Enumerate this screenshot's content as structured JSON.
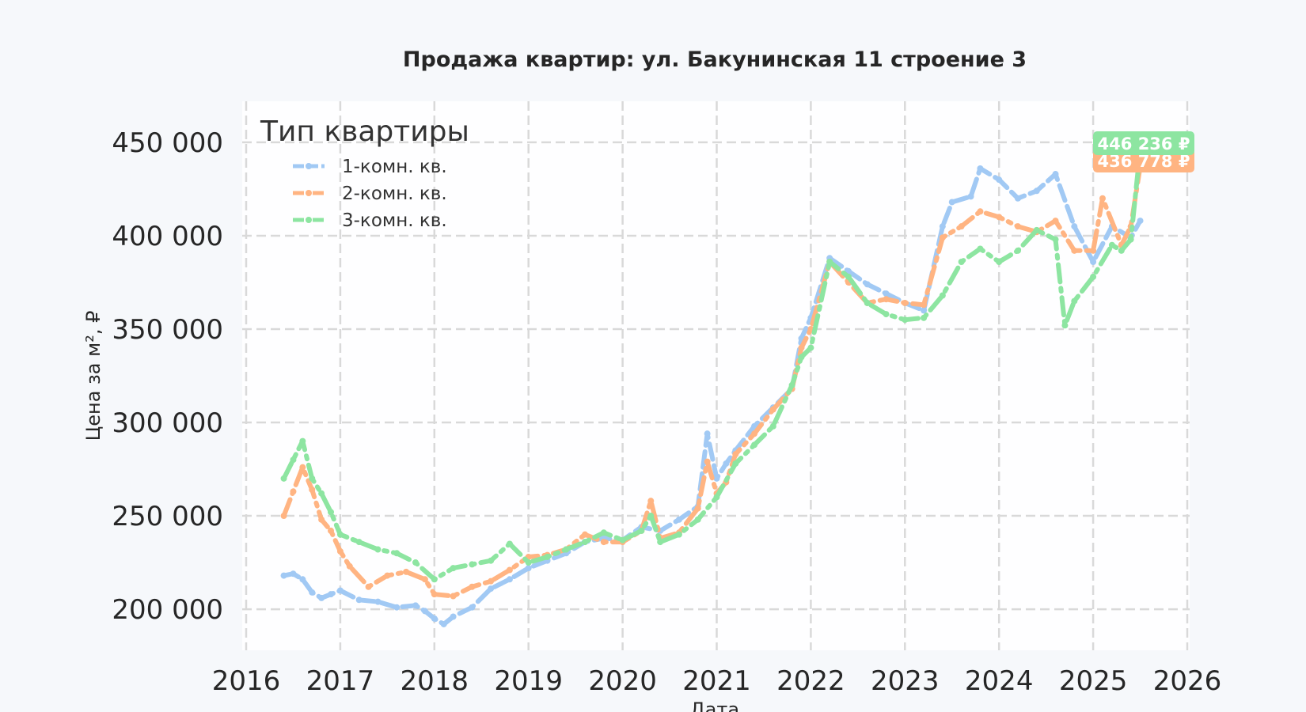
{
  "chart_data": {
    "type": "line",
    "title": "Продажа квартир: ул. Бакунинская 11 строение 3",
    "xlabel": "Дата",
    "ylabel": "Цена за м², ₽",
    "xlim": [
      2016.0,
      2026.0
    ],
    "ylim": [
      178000,
      472000
    ],
    "x_ticks": [
      {
        "value": 2016,
        "label": "2016"
      },
      {
        "value": 2017,
        "label": "2017"
      },
      {
        "value": 2018,
        "label": "2018"
      },
      {
        "value": 2019,
        "label": "2019"
      },
      {
        "value": 2020,
        "label": "2020"
      },
      {
        "value": 2021,
        "label": "2021"
      },
      {
        "value": 2022,
        "label": "2022"
      },
      {
        "value": 2023,
        "label": "2023"
      },
      {
        "value": 2024,
        "label": "2024"
      },
      {
        "value": 2025,
        "label": "2025"
      },
      {
        "value": 2026,
        "label": "2026"
      }
    ],
    "y_ticks": [
      {
        "value": 200000,
        "label": "200 000"
      },
      {
        "value": 250000,
        "label": "250 000"
      },
      {
        "value": 300000,
        "label": "300 000"
      },
      {
        "value": 350000,
        "label": "350 000"
      },
      {
        "value": 400000,
        "label": "400 000"
      },
      {
        "value": 450000,
        "label": "450 000"
      }
    ],
    "grid": true,
    "legend": {
      "title": "Тип квартиры",
      "placement": "top-left"
    },
    "series": [
      {
        "name": "1-комн. кв.",
        "color": "#a1c9f4",
        "dash": "dashed",
        "x": [
          2016.4,
          2016.5,
          2016.6,
          2016.7,
          2016.8,
          2016.9,
          2017.0,
          2017.2,
          2017.4,
          2017.6,
          2017.8,
          2017.9,
          2018.0,
          2018.1,
          2018.2,
          2018.4,
          2018.6,
          2018.8,
          2019.0,
          2019.2,
          2019.4,
          2019.6,
          2019.8,
          2020.0,
          2020.2,
          2020.4,
          2020.6,
          2020.8,
          2020.9,
          2021.0,
          2021.1,
          2021.2,
          2021.4,
          2021.6,
          2021.8,
          2021.9,
          2022.0,
          2022.2,
          2022.4,
          2022.6,
          2022.8,
          2023.0,
          2023.2,
          2023.4,
          2023.5,
          2023.7,
          2023.8,
          2024.0,
          2024.2,
          2024.4,
          2024.6,
          2024.8,
          2025.0,
          2025.2,
          2025.4,
          2025.5
        ],
        "y": [
          218000,
          219000,
          216000,
          209000,
          206000,
          208000,
          210000,
          205000,
          204000,
          201000,
          202000,
          199000,
          195000,
          192000,
          196000,
          201000,
          211000,
          216000,
          222000,
          226000,
          230000,
          236000,
          238000,
          237000,
          244000,
          242000,
          248000,
          255000,
          294000,
          270000,
          278000,
          285000,
          298000,
          308000,
          318000,
          345000,
          356000,
          388000,
          381000,
          374000,
          369000,
          364000,
          360000,
          405000,
          418000,
          421000,
          436000,
          430000,
          420000,
          424000,
          433000,
          405000,
          386000,
          405000,
          399000,
          408000
        ]
      },
      {
        "name": "2-комн. кв.",
        "color": "#ffb482",
        "dash": "dashdot",
        "x": [
          2016.4,
          2016.5,
          2016.6,
          2016.7,
          2016.8,
          2016.9,
          2017.0,
          2017.1,
          2017.3,
          2017.5,
          2017.7,
          2017.9,
          2018.0,
          2018.2,
          2018.4,
          2018.6,
          2018.8,
          2019.0,
          2019.2,
          2019.4,
          2019.6,
          2019.8,
          2020.0,
          2020.2,
          2020.3,
          2020.4,
          2020.6,
          2020.8,
          2020.9,
          2021.0,
          2021.1,
          2021.2,
          2021.4,
          2021.6,
          2021.8,
          2021.9,
          2022.0,
          2022.2,
          2022.4,
          2022.6,
          2022.8,
          2023.0,
          2023.2,
          2023.4,
          2023.6,
          2023.8,
          2024.0,
          2024.2,
          2024.4,
          2024.6,
          2024.8,
          2025.0,
          2025.1,
          2025.3,
          2025.4,
          2025.5
        ],
        "y": [
          250000,
          263000,
          276000,
          264000,
          248000,
          242000,
          231000,
          223000,
          212000,
          218000,
          220000,
          216000,
          208000,
          207000,
          212000,
          215000,
          221000,
          228000,
          229000,
          232000,
          240000,
          236000,
          236000,
          242000,
          258000,
          238000,
          241000,
          254000,
          279000,
          262000,
          268000,
          283000,
          294000,
          307000,
          318000,
          340000,
          350000,
          386000,
          375000,
          364000,
          366000,
          364000,
          363000,
          399000,
          405000,
          413000,
          410000,
          405000,
          402000,
          408000,
          392000,
          392000,
          420000,
          395000,
          405000,
          437000
        ]
      },
      {
        "name": "3-комн. кв.",
        "color": "#8de5a1",
        "dash": "dashdot",
        "x": [
          2016.4,
          2016.5,
          2016.6,
          2016.7,
          2016.8,
          2016.9,
          2017.0,
          2017.2,
          2017.4,
          2017.6,
          2017.8,
          2018.0,
          2018.2,
          2018.4,
          2018.6,
          2018.8,
          2019.0,
          2019.2,
          2019.4,
          2019.6,
          2019.8,
          2020.0,
          2020.2,
          2020.3,
          2020.4,
          2020.6,
          2020.8,
          2021.0,
          2021.2,
          2021.4,
          2021.6,
          2021.8,
          2021.9,
          2022.0,
          2022.2,
          2022.4,
          2022.6,
          2022.8,
          2023.0,
          2023.2,
          2023.4,
          2023.6,
          2023.8,
          2024.0,
          2024.2,
          2024.4,
          2024.6,
          2024.7,
          2024.8,
          2025.0,
          2025.2,
          2025.3,
          2025.4,
          2025.5
        ],
        "y": [
          270000,
          280000,
          290000,
          270000,
          262000,
          252000,
          240000,
          236000,
          232000,
          230000,
          225000,
          216000,
          222000,
          224000,
          226000,
          235000,
          225000,
          228000,
          232000,
          236000,
          241000,
          237000,
          242000,
          250000,
          236000,
          240000,
          248000,
          260000,
          278000,
          288000,
          298000,
          320000,
          335000,
          340000,
          386000,
          378000,
          364000,
          358000,
          355000,
          356000,
          368000,
          386000,
          393000,
          386000,
          392000,
          403000,
          398000,
          352000,
          365000,
          378000,
          395000,
          392000,
          398000,
          446000
        ]
      }
    ],
    "end_labels": [
      {
        "series": "3-комн. кв.",
        "text": "446 236 ₽",
        "value": 446236
      },
      {
        "series": "2-комн. кв.",
        "text": "436 778 ₽",
        "value": 436778
      }
    ]
  }
}
